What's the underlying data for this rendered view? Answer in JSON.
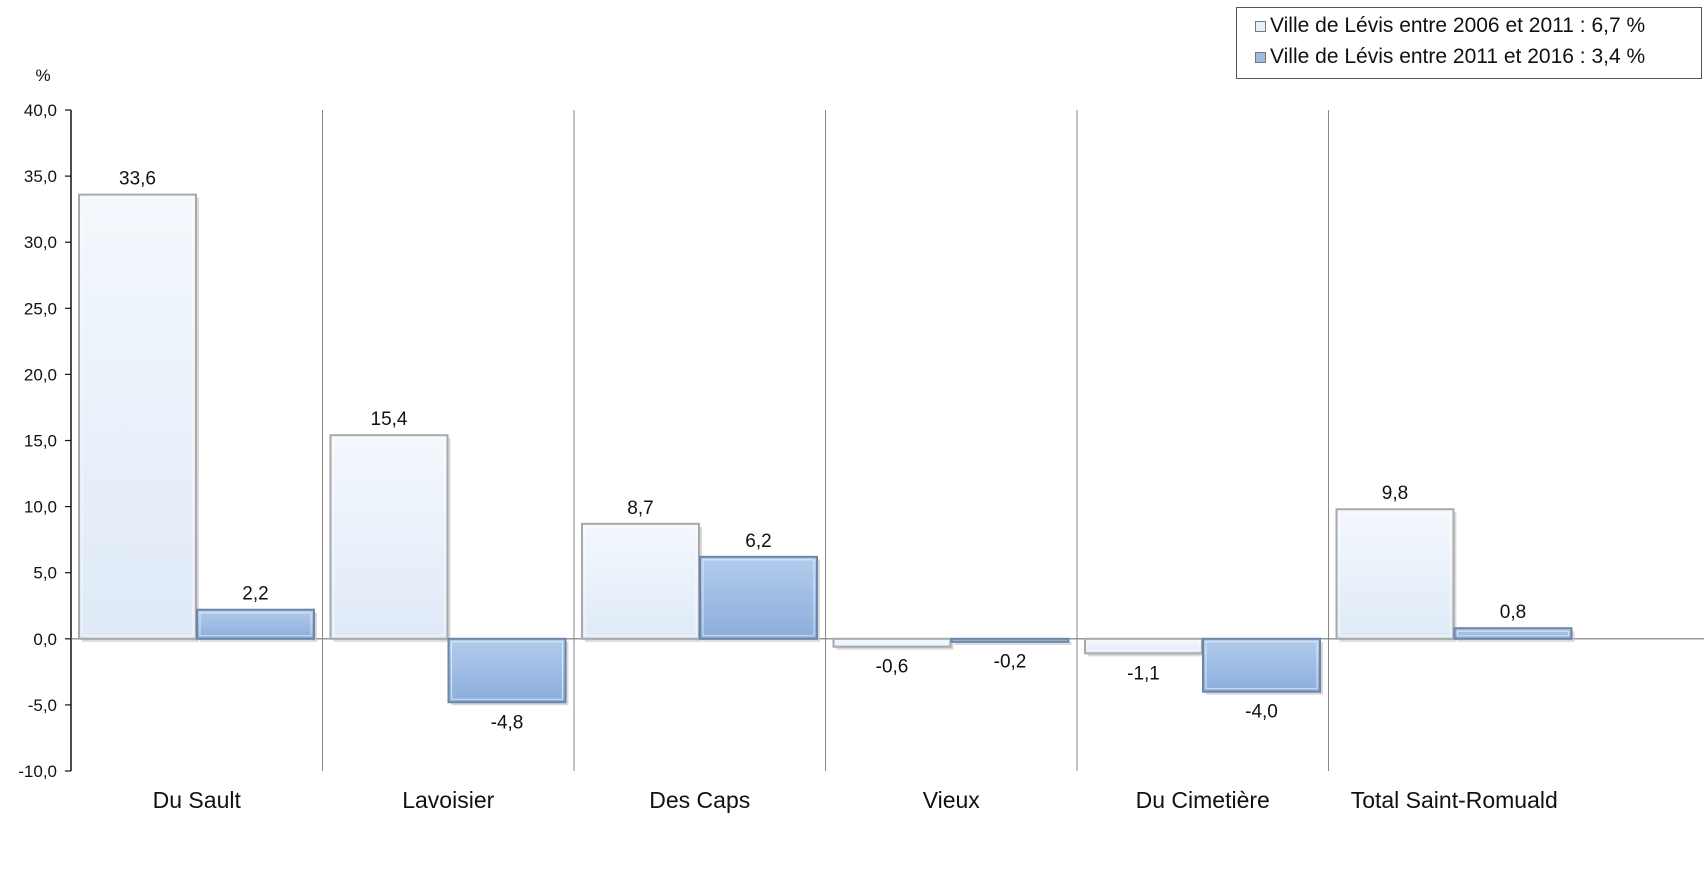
{
  "chart_data": {
    "type": "bar",
    "ylabel": "%",
    "ylim": [
      -10,
      40
    ],
    "yticks": [
      "-10,0",
      "-5,0",
      "0,0",
      "5,0",
      "10,0",
      "15,0",
      "20,0",
      "25,0",
      "30,0",
      "35,0",
      "40,0"
    ],
    "categories": [
      "Du Sault",
      "Lavoisier",
      "Des Caps",
      "Vieux",
      "Du Cimetière",
      "Total Saint-Romuald"
    ],
    "series": [
      {
        "name": "Ville de Lévis entre 2006 et 2011 : 6,7 %",
        "values": [
          33.6,
          15.4,
          8.7,
          -0.6,
          -1.1,
          9.8
        ],
        "labels": [
          "33,6",
          "15,4",
          "8,7",
          "-0,6",
          "-1,1",
          "9,8"
        ],
        "color": "#e8f1fb"
      },
      {
        "name": "Ville de Lévis entre 2011 et 2016 : 3,4 %",
        "values": [
          2.2,
          -4.8,
          6.2,
          -0.2,
          -4.0,
          0.8
        ],
        "labels": [
          "2,2",
          "-4,8",
          "6,2",
          "-0,2",
          "-4,0",
          "0,8"
        ],
        "color": "#9dbbe3"
      }
    ],
    "grid": false,
    "legend": "top-right"
  }
}
